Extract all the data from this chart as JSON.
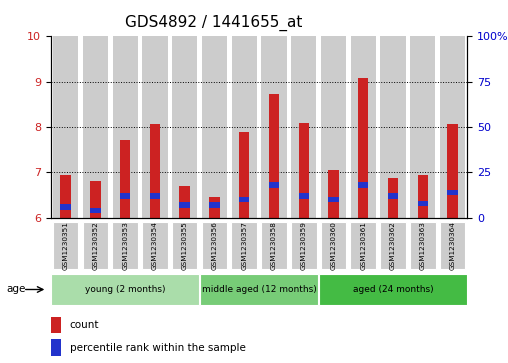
{
  "title": "GDS4892 / 1441655_at",
  "samples": [
    "GSM1230351",
    "GSM1230352",
    "GSM1230353",
    "GSM1230354",
    "GSM1230355",
    "GSM1230356",
    "GSM1230357",
    "GSM1230358",
    "GSM1230359",
    "GSM1230360",
    "GSM1230361",
    "GSM1230362",
    "GSM1230363",
    "GSM1230364"
  ],
  "count_values": [
    6.95,
    6.82,
    7.72,
    8.07,
    6.7,
    6.45,
    7.88,
    8.72,
    8.08,
    7.05,
    9.08,
    6.88,
    6.95,
    8.07
  ],
  "percentile_values": [
    6,
    4,
    12,
    12,
    7,
    7,
    10,
    18,
    12,
    10,
    18,
    12,
    8,
    14
  ],
  "ylim_left": [
    6,
    10
  ],
  "ylim_right": [
    0,
    100
  ],
  "yticks_left": [
    6,
    7,
    8,
    9,
    10
  ],
  "yticks_right": [
    0,
    25,
    50,
    75,
    100
  ],
  "count_color": "#cc2222",
  "percentile_color": "#2233cc",
  "groups": [
    {
      "label": "young (2 months)",
      "start": 0,
      "end": 5,
      "color": "#aaddaa"
    },
    {
      "label": "middle aged (12 months)",
      "start": 5,
      "end": 9,
      "color": "#77cc77"
    },
    {
      "label": "aged (24 months)",
      "start": 9,
      "end": 14,
      "color": "#44bb44"
    }
  ],
  "age_label": "age",
  "legend_count": "count",
  "legend_percentile": "percentile rank within the sample",
  "bar_bg_color": "#cccccc",
  "title_fontsize": 11,
  "tick_fontsize": 8,
  "label_fontsize": 7
}
